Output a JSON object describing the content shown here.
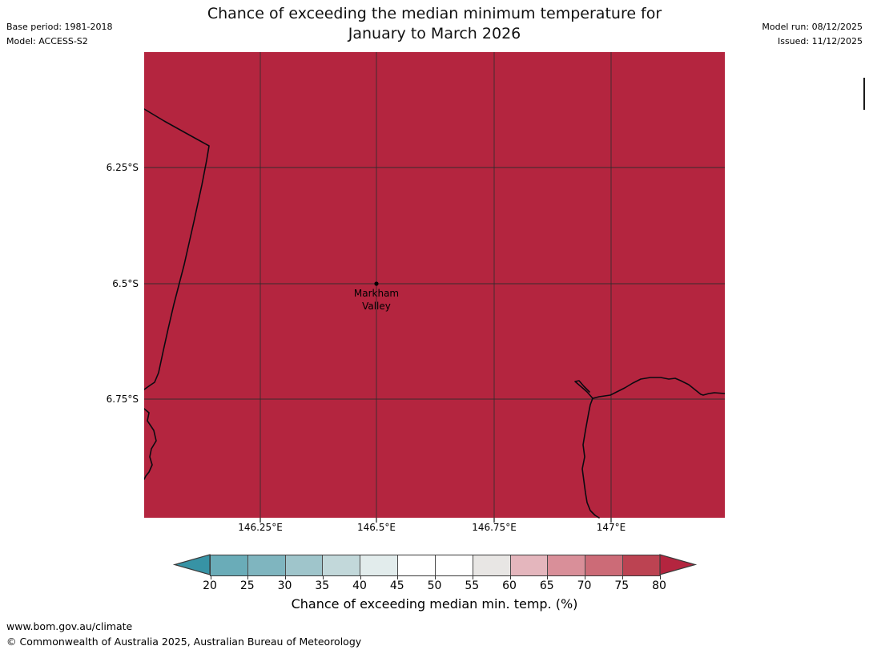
{
  "header": {
    "title_line1": "Chance of exceeding the median minimum temperature for",
    "title_line2": "January to March 2026",
    "base_period": "Base period: 1981-2018",
    "model": "Model: ACCESS-S2",
    "model_run": "Model run: 08/12/2025",
    "issued": "Issued: 11/12/2025"
  },
  "map": {
    "fill_color": "#b4253f",
    "grid_color": "#2b2b2b",
    "coast_color": "#0a0a10",
    "lat_labels": [
      "6.25°S",
      "6.5°S",
      "6.75°S"
    ],
    "lon_labels": [
      "146.25°E",
      "146.5°E",
      "146.75°E",
      "147°E"
    ],
    "marker_label_line1": "Markham",
    "marker_label_line2": "Valley"
  },
  "colorbar": {
    "ticks": [
      "20",
      "25",
      "30",
      "35",
      "40",
      "45",
      "50",
      "55",
      "60",
      "65",
      "70",
      "75",
      "80"
    ],
    "segments": [
      "#6aacb8",
      "#7fb5bf",
      "#9fc5cb",
      "#c2d8da",
      "#e2ecec",
      "#ffffff",
      "#ffffff",
      "#e8e6e4",
      "#e4b6bd",
      "#d98f99",
      "#cc6b77",
      "#bc4352"
    ],
    "arrow_left": "#3793a5",
    "arrow_right": "#b4253f",
    "label": "Chance of exceeding median min. temp. (%)"
  },
  "footer": {
    "url": "www.bom.gov.au/climate",
    "copyright": "© Commonwealth of Australia 2025, Australian Bureau of Meteorology"
  },
  "chart_data": {
    "type": "heatmap",
    "title": "Chance of exceeding the median minimum temperature for January to March 2026",
    "subtitle_meta": [
      "Base period: 1981-2018",
      "Model: ACCESS-S2",
      "Model run: 08/12/2025",
      "Issued: 11/12/2025"
    ],
    "x_ticks": [
      "146.25°E",
      "146.5°E",
      "146.75°E",
      "147°E"
    ],
    "y_ticks": [
      "6.25°S",
      "6.5°S",
      "6.75°S"
    ],
    "x_range_deg_e": [
      146.0,
      147.25
    ],
    "y_range_deg_s": [
      6.0,
      7.0
    ],
    "values": "uniform chance > 80% (deepest red of scale) across the entire mapped region",
    "marker": {
      "name": "Markham Valley",
      "lon_deg_e": 146.5,
      "lat_deg_s": 6.5
    },
    "colorbar_ticks": [
      20,
      25,
      30,
      35,
      40,
      45,
      50,
      55,
      60,
      65,
      70,
      75,
      80
    ],
    "colorbar_label": "Chance of exceeding median min. temp. (%)",
    "legend_position": "bottom",
    "grid": true
  }
}
